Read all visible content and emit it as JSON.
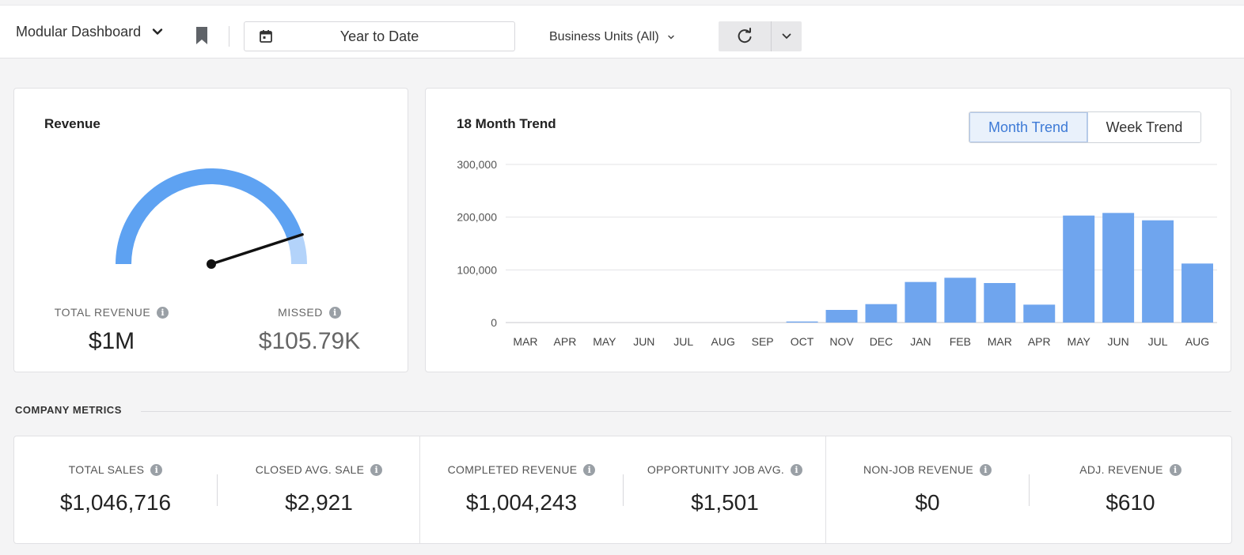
{
  "toolbar": {
    "dashboard_label": "Modular Dashboard",
    "date_range": "Year to Date",
    "business_units": "Business Units (All)"
  },
  "revenue": {
    "title": "Revenue",
    "total_label": "TOTAL REVENUE",
    "total_value": "$1M",
    "missed_label": "MISSED",
    "missed_value": "$105.79K",
    "gauge_fraction": 0.9,
    "colors": {
      "filled": "#5ea2f2",
      "remaining": "#b3d3fa",
      "needle": "#111111"
    }
  },
  "trend": {
    "title": "18 Month Trend",
    "toggle_month": "Month Trend",
    "toggle_week": "Week Trend",
    "active_toggle": "month"
  },
  "chart_data": {
    "type": "bar",
    "title": "18 Month Trend",
    "categories": [
      "MAR",
      "APR",
      "MAY",
      "JUN",
      "JUL",
      "AUG",
      "SEP",
      "OCT",
      "NOV",
      "DEC",
      "JAN",
      "FEB",
      "MAR",
      "APR",
      "MAY",
      "JUN",
      "JUL",
      "AUG"
    ],
    "values": [
      0,
      0,
      0,
      0,
      0,
      0,
      0,
      2000,
      24000,
      35000,
      77000,
      85000,
      75000,
      34000,
      203000,
      208000,
      194000,
      112000
    ],
    "yticks": [
      0,
      100000,
      200000,
      300000
    ],
    "ytick_labels": [
      "0",
      "100,000",
      "200,000",
      "300,000"
    ],
    "ylim": [
      0,
      300000
    ],
    "grid": true,
    "bar_color": "#6fa5ee"
  },
  "company_metrics": {
    "title": "COMPANY METRICS",
    "groups": [
      [
        {
          "label": "TOTAL SALES",
          "value": "$1,046,716"
        },
        {
          "label": "CLOSED AVG. SALE",
          "value": "$2,921"
        }
      ],
      [
        {
          "label": "COMPLETED REVENUE",
          "value": "$1,004,243"
        },
        {
          "label": "OPPORTUNITY JOB AVG.",
          "value": "$1,501"
        }
      ],
      [
        {
          "label": "NON-JOB REVENUE",
          "value": "$0"
        },
        {
          "label": "ADJ. REVENUE",
          "value": "$610"
        }
      ]
    ]
  }
}
